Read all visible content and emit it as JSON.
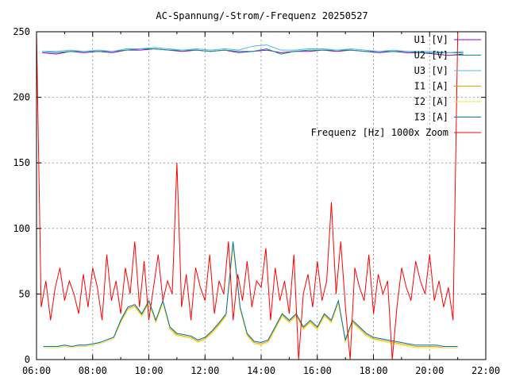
{
  "chart_data": {
    "type": "line",
    "title": "AC-Spannung/-Strom/-Frequenz 20250527",
    "xlabel": "",
    "ylabel": "",
    "xlim_hours": [
      6,
      22
    ],
    "ylim": [
      0,
      250
    ],
    "x_tick_labels": [
      "06:00",
      "08:00",
      "10:00",
      "12:00",
      "14:00",
      "16:00",
      "18:00",
      "20:00",
      "22:00"
    ],
    "y_tick_labels": [
      "0",
      "50",
      "100",
      "150",
      "200",
      "250"
    ],
    "grid": true,
    "legend_position": "top-right",
    "series": [
      {
        "name": "U1 [V]",
        "color": "#9400d3",
        "x_start_hours": 6.2,
        "x_step_hours": 0.5,
        "values": [
          234,
          233,
          235,
          234,
          235,
          234,
          236,
          236,
          237,
          236,
          235,
          236,
          235,
          236,
          234,
          235,
          236,
          234,
          235,
          235,
          236,
          235,
          236,
          235,
          234,
          235,
          234,
          234,
          233,
          232,
          233
        ]
      },
      {
        "name": "U2 [V]",
        "color": "#009e73",
        "x_start_hours": 6.2,
        "x_step_hours": 0.5,
        "values": [
          235,
          234,
          235,
          235,
          235,
          235,
          236,
          237,
          237,
          236,
          236,
          236,
          235,
          236,
          235,
          235,
          237,
          233,
          235,
          236,
          236,
          236,
          236,
          235,
          235,
          235,
          235,
          234,
          234,
          234,
          234
        ]
      },
      {
        "name": "U3 [V]",
        "color": "#56b4e9",
        "x_start_hours": 6.2,
        "x_step_hours": 0.5,
        "values": [
          235,
          235,
          236,
          235,
          236,
          235,
          237,
          237,
          238,
          237,
          236,
          237,
          236,
          237,
          236,
          239,
          240,
          236,
          236,
          237,
          237,
          236,
          237,
          236,
          235,
          236,
          235,
          235,
          235,
          234,
          235
        ]
      },
      {
        "name": "I1 [A]",
        "color": "#e69f00",
        "x_start_hours": 6.25,
        "x_step_hours": 0.25,
        "values": [
          10,
          10,
          10,
          11,
          10,
          11,
          11,
          12,
          13,
          15,
          17,
          29,
          39,
          41,
          34,
          44,
          29,
          44,
          24,
          19,
          18,
          17,
          14,
          16,
          21,
          27,
          34,
          88,
          39,
          19,
          13,
          12,
          14,
          24,
          34,
          29,
          34,
          24,
          29,
          24,
          34,
          29,
          44,
          14,
          29,
          24,
          19,
          16,
          15,
          14,
          13,
          12,
          11,
          10,
          10,
          10,
          10,
          9,
          9,
          9
        ]
      },
      {
        "name": "I2 [A]",
        "color": "#f0e442",
        "x_start_hours": 6.25,
        "x_step_hours": 0.25,
        "values": [
          9,
          9,
          9,
          10,
          9,
          10,
          10,
          11,
          12,
          14,
          16,
          28,
          38,
          40,
          33,
          43,
          28,
          43,
          23,
          18,
          17,
          16,
          13,
          15,
          20,
          26,
          33,
          87,
          38,
          18,
          12,
          11,
          13,
          23,
          33,
          28,
          33,
          23,
          28,
          23,
          33,
          28,
          43,
          13,
          28,
          23,
          18,
          15,
          14,
          13,
          12,
          11,
          10,
          9,
          9,
          9,
          9,
          9,
          9,
          9
        ]
      },
      {
        "name": "I3 [A]",
        "color": "#0072b2",
        "x_start_hours": 6.25,
        "x_step_hours": 0.25,
        "values": [
          10,
          10,
          10,
          11,
          10,
          11,
          11,
          12,
          13,
          15,
          17,
          30,
          40,
          42,
          35,
          45,
          30,
          45,
          25,
          20,
          19,
          18,
          15,
          17,
          22,
          28,
          35,
          90,
          40,
          20,
          14,
          13,
          15,
          25,
          35,
          30,
          35,
          25,
          30,
          25,
          35,
          30,
          45,
          15,
          30,
          25,
          20,
          17,
          16,
          15,
          14,
          13,
          12,
          11,
          11,
          11,
          11,
          10,
          10,
          10
        ]
      },
      {
        "name": "Frequenz [Hz] 1000x Zoom",
        "color": "#ff0000",
        "x_start_hours": 6.0,
        "x_step_hours": 0.1667,
        "values": [
          250,
          40,
          60,
          30,
          55,
          70,
          45,
          60,
          50,
          35,
          65,
          40,
          70,
          55,
          30,
          80,
          45,
          60,
          35,
          70,
          50,
          90,
          40,
          75,
          30,
          55,
          80,
          45,
          60,
          50,
          150,
          40,
          65,
          30,
          70,
          55,
          45,
          80,
          35,
          60,
          50,
          90,
          30,
          65,
          45,
          75,
          40,
          60,
          55,
          85,
          30,
          70,
          45,
          60,
          35,
          80,
          0,
          50,
          65,
          40,
          75,
          45,
          60,
          120,
          50,
          90,
          40,
          0,
          70,
          55,
          45,
          80,
          35,
          65,
          50,
          60,
          0,
          40,
          70,
          55,
          45,
          75,
          60,
          50,
          80,
          45,
          60,
          40,
          55,
          30,
          250
        ]
      }
    ]
  }
}
